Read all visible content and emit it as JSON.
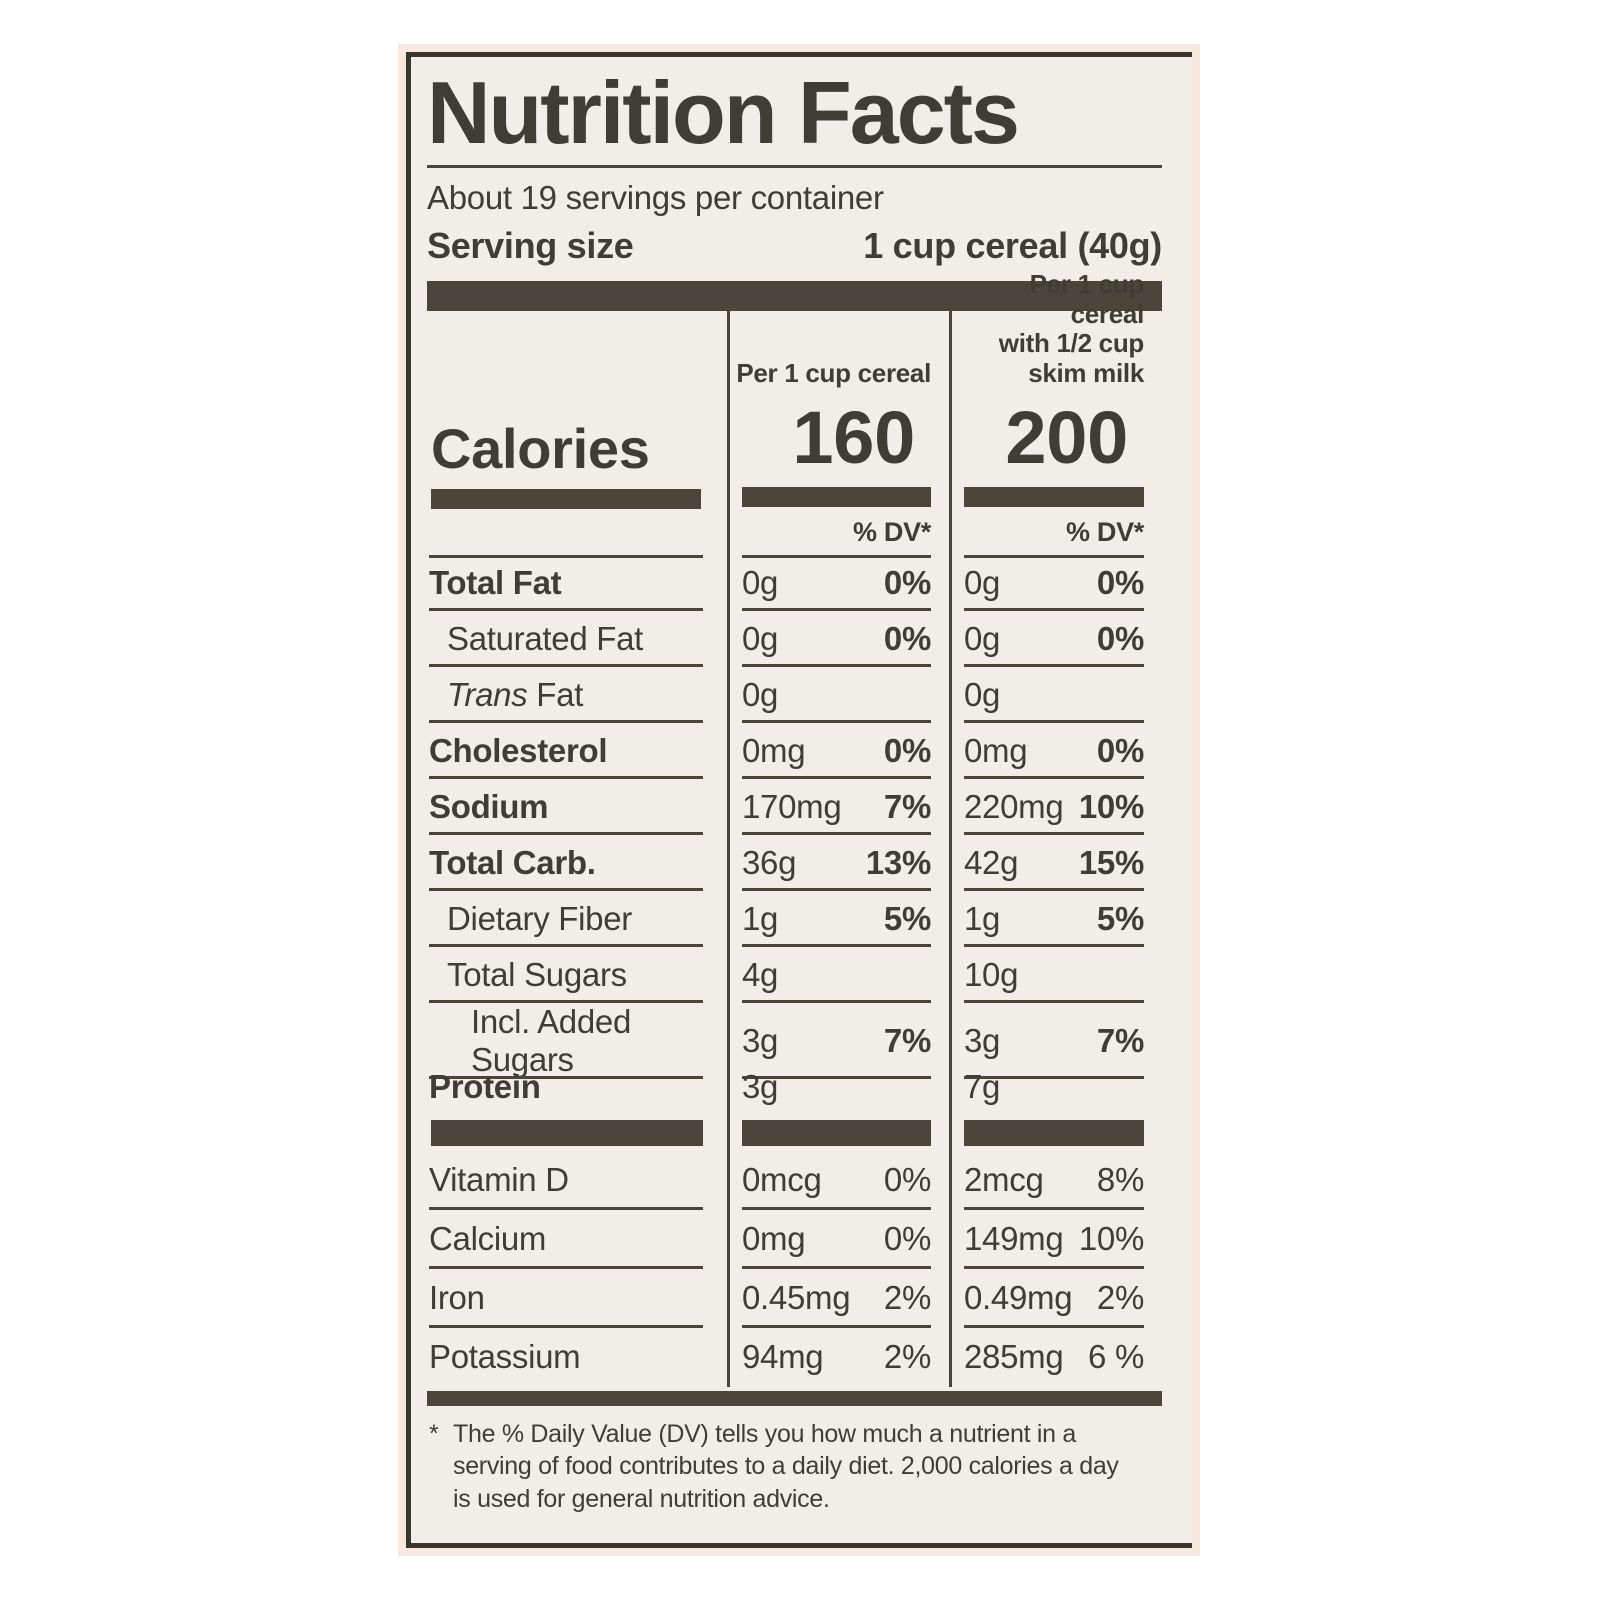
{
  "label": {
    "title": "Nutrition Facts",
    "servings_per_container": "About 19 servings per container",
    "serving_size_label": "Serving size",
    "serving_size_value": "1 cup cereal (40g)",
    "calories_label": "Calories",
    "dv_header": "% DV*",
    "columns": [
      {
        "header_lines": [
          "Per 1 cup cereal"
        ],
        "calories": "160"
      },
      {
        "header_lines": [
          "Per 1 cup cereal",
          "with 1/2 cup skim milk"
        ],
        "calories": "200"
      }
    ],
    "nutrients": [
      {
        "name": "Total Fat",
        "style": "bold",
        "indent": 0,
        "values": [
          {
            "amount": "0g",
            "dv": "0%"
          },
          {
            "amount": "0g",
            "dv": "0%"
          }
        ]
      },
      {
        "name": "Saturated Fat",
        "style": "regular",
        "indent": 1,
        "values": [
          {
            "amount": "0g",
            "dv": "0%"
          },
          {
            "amount": "0g",
            "dv": "0%"
          }
        ]
      },
      {
        "name": "Fat",
        "name_italic_prefix": "Trans",
        "style": "regular",
        "indent": 1,
        "values": [
          {
            "amount": "0g",
            "dv": ""
          },
          {
            "amount": "0g",
            "dv": ""
          }
        ]
      },
      {
        "name": "Cholesterol",
        "style": "bold",
        "indent": 0,
        "values": [
          {
            "amount": "0mg",
            "dv": "0%"
          },
          {
            "amount": "0mg",
            "dv": "0%"
          }
        ]
      },
      {
        "name": "Sodium",
        "style": "bold",
        "indent": 0,
        "values": [
          {
            "amount": "170mg",
            "dv": "7%"
          },
          {
            "amount": "220mg",
            "dv": "10%"
          }
        ]
      },
      {
        "name": "Total Carb.",
        "style": "bold",
        "indent": 0,
        "values": [
          {
            "amount": "36g",
            "dv": "13%"
          },
          {
            "amount": "42g",
            "dv": "15%"
          }
        ]
      },
      {
        "name": "Dietary Fiber",
        "style": "regular",
        "indent": 1,
        "values": [
          {
            "amount": "1g",
            "dv": "5%"
          },
          {
            "amount": "1g",
            "dv": "5%"
          }
        ]
      },
      {
        "name": "Total Sugars",
        "style": "regular",
        "indent": 1,
        "values": [
          {
            "amount": "4g",
            "dv": ""
          },
          {
            "amount": "10g",
            "dv": ""
          }
        ]
      },
      {
        "name": "Incl. Added Sugars",
        "style": "regular",
        "indent": 2,
        "values": [
          {
            "amount": "3g",
            "dv": "7%"
          },
          {
            "amount": "3g",
            "dv": "7%"
          }
        ]
      },
      {
        "name": "Protein",
        "style": "bold",
        "indent": 0,
        "values": [
          {
            "amount": "3g",
            "dv": ""
          },
          {
            "amount": "7g",
            "dv": ""
          }
        ]
      }
    ],
    "micronutrients": [
      {
        "name": "Vitamin D",
        "values": [
          {
            "amount": "0mcg",
            "dv": "0%"
          },
          {
            "amount": "2mcg",
            "dv": "8%"
          }
        ]
      },
      {
        "name": "Calcium",
        "values": [
          {
            "amount": "0mg",
            "dv": "0%"
          },
          {
            "amount": "149mg",
            "dv": "10%"
          }
        ]
      },
      {
        "name": "Iron",
        "values": [
          {
            "amount": "0.45mg",
            "dv": "2%"
          },
          {
            "amount": "0.49mg",
            "dv": "2%"
          }
        ]
      },
      {
        "name": "Potassium",
        "values": [
          {
            "amount": "94mg",
            "dv": "2%"
          },
          {
            "amount": "285mg",
            "dv": "6 %"
          }
        ]
      }
    ],
    "footnote_marker": "*",
    "footnote": "The % Daily Value (DV) tells you how much a nutrient in a serving of food contributes to a daily diet. 2,000 calories a day is used for general nutrition advice.",
    "colors": {
      "text": "#403d36",
      "bar": "#4a463c",
      "paper": "#f1eeea",
      "border": "#393630",
      "paper_edge": "#f6e8dd"
    }
  }
}
